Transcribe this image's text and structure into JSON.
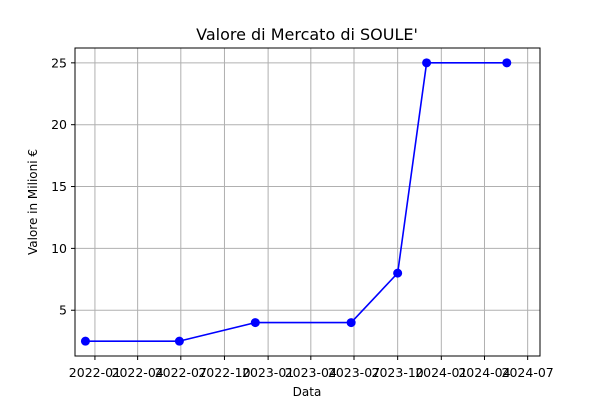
{
  "chart_data": {
    "type": "line",
    "title": "Valore di Mercato di SOULE'",
    "xlabel": "Data",
    "ylabel": "Valore in Milioni €",
    "x_ticks": [
      "2022-01",
      "2022-04",
      "2022-07",
      "2022-10",
      "2023-01",
      "2023-04",
      "2023-07",
      "2023-10",
      "2024-01",
      "2024-04",
      "2024-07"
    ],
    "y_ticks": [
      5,
      10,
      15,
      20,
      25
    ],
    "xlim": [
      "2021-11-20",
      "2024-07-27"
    ],
    "ylim": [
      1.3,
      26.2
    ],
    "grid": true,
    "series": [
      {
        "color": "#0000ff",
        "marker": "circle",
        "x": [
          "2021-12-12",
          "2022-06-28",
          "2022-12-05",
          "2023-06-25",
          "2023-10-01",
          "2023-12-01",
          "2024-05-18"
        ],
        "y": [
          2.5,
          2.5,
          4,
          4,
          8,
          25,
          25
        ]
      }
    ]
  }
}
